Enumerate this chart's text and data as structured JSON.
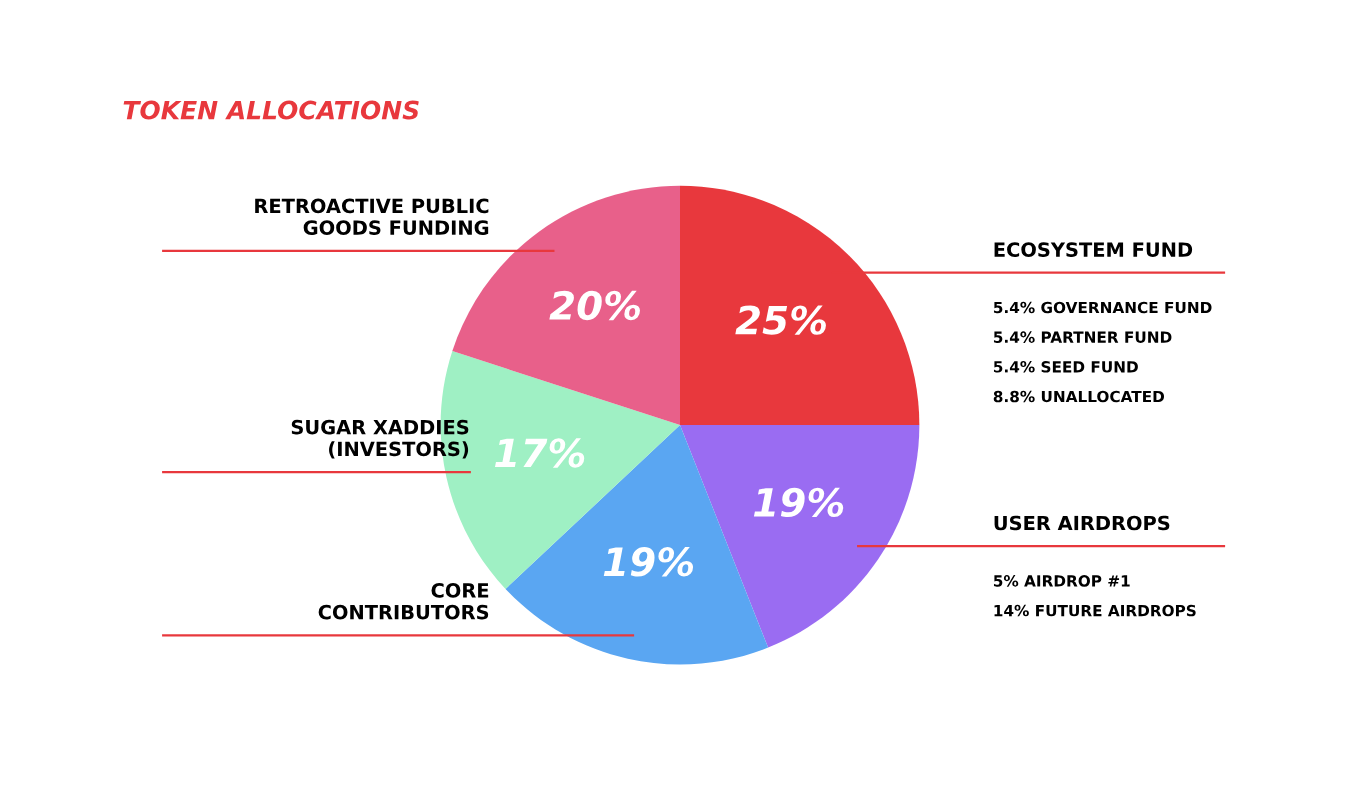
{
  "chart_data": {
    "type": "pie",
    "title": "TOKEN ALLOCATIONS",
    "categories": [
      "ECOSYSTEM FUND",
      "USER AIRDROPS",
      "CORE\nCONTRIBUTORS",
      "SUGAR XADDIES\n(INVESTORS)",
      "RETROACTIVE PUBLIC\nGOODS FUNDING"
    ],
    "values": [
      25,
      19,
      19,
      17,
      20
    ],
    "colors": [
      "#e8383d",
      "#9a6cf2",
      "#5aa6f2",
      "#9ff0c4",
      "#e8608a"
    ],
    "value_labels": [
      "25%",
      "19%",
      "19%",
      "17%",
      "20%"
    ],
    "data_labels": true,
    "annotations": [
      "5.4% GOVERNANCE FUND",
      "5.4% PARTNER FUND",
      "5.4% SEED FUND",
      "8.8% UNALLOCATED",
      "5% AIRDROP #1",
      "14% FUTURE AIRDROPS"
    ]
  }
}
